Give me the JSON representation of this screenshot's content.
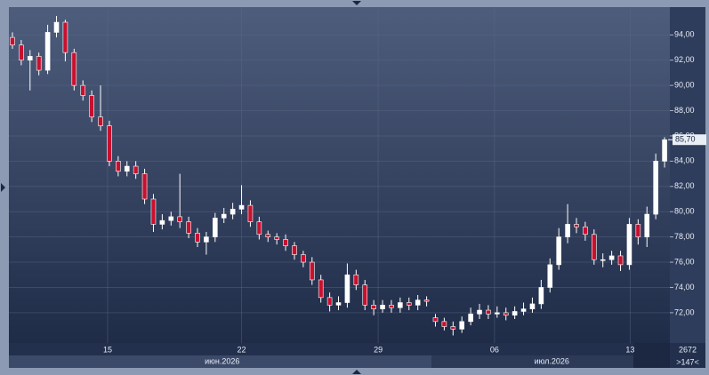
{
  "chart_data": {
    "type": "candlestick",
    "open": [
      93.8,
      93.2,
      92.0,
      92.3,
      91.2,
      94.2,
      95.0,
      92.6,
      90.0,
      89.2,
      87.5,
      86.8,
      84.0,
      83.2,
      83.6,
      83.0,
      81.0,
      79.0,
      79.3,
      79.6,
      79.2,
      78.3,
      77.6,
      78.0,
      79.5,
      79.8,
      80.2,
      80.5,
      79.2,
      78.2,
      78.0,
      77.8,
      77.3,
      76.6,
      76.0,
      74.6,
      73.2,
      72.6,
      72.8,
      75.0,
      74.2,
      72.6,
      72.3,
      72.6,
      72.4,
      72.8,
      72.6,
      73.0,
      71.6,
      71.3,
      70.9,
      70.7,
      71.3,
      71.9,
      72.2,
      71.9,
      72.0,
      71.8,
      72.1,
      72.3,
      72.7,
      74.0,
      75.8,
      78.0,
      79.0,
      78.8,
      78.2,
      76.2,
      76.2,
      76.5,
      75.8,
      79.0,
      78.0,
      79.8,
      84.0
    ],
    "high": [
      94.2,
      93.6,
      92.8,
      92.6,
      94.8,
      95.5,
      95.2,
      92.9,
      90.4,
      89.6,
      90.0,
      87.2,
      84.4,
      84.0,
      84.0,
      83.4,
      81.4,
      79.8,
      80.0,
      83.0,
      79.6,
      78.7,
      78.4,
      79.9,
      80.3,
      80.7,
      82.1,
      80.9,
      79.6,
      78.5,
      78.3,
      78.2,
      77.6,
      76.9,
      76.4,
      75.0,
      73.6,
      73.3,
      75.9,
      75.4,
      74.6,
      73.0,
      73.0,
      73.0,
      73.2,
      73.2,
      73.4,
      73.3,
      71.9,
      71.6,
      71.3,
      71.7,
      72.4,
      72.7,
      72.6,
      72.5,
      72.4,
      72.5,
      72.8,
      73.2,
      74.6,
      76.3,
      78.7,
      80.6,
      79.5,
      79.2,
      78.6,
      76.7,
      76.9,
      76.9,
      79.5,
      79.4,
      80.4,
      84.6,
      85.9
    ],
    "low": [
      92.9,
      91.6,
      89.6,
      90.8,
      90.9,
      93.8,
      91.9,
      89.6,
      88.8,
      87.1,
      86.4,
      83.6,
      82.8,
      82.8,
      82.6,
      80.6,
      78.4,
      78.6,
      78.9,
      78.7,
      77.9,
      77.2,
      76.6,
      77.6,
      79.1,
      79.4,
      79.8,
      78.8,
      77.8,
      77.6,
      77.4,
      76.9,
      76.2,
      75.6,
      74.2,
      72.8,
      72.1,
      72.2,
      72.4,
      73.8,
      72.2,
      71.8,
      72.0,
      72.0,
      72.0,
      72.2,
      72.2,
      72.5,
      70.9,
      70.6,
      70.2,
      70.4,
      71.0,
      71.5,
      71.5,
      71.6,
      71.4,
      71.5,
      71.8,
      72.0,
      72.3,
      73.6,
      75.4,
      77.5,
      78.3,
      77.7,
      75.8,
      75.6,
      75.8,
      75.3,
      75.4,
      77.4,
      77.2,
      79.4,
      83.5
    ],
    "close": [
      93.2,
      92.0,
      92.3,
      91.2,
      94.2,
      95.0,
      92.6,
      90.0,
      89.2,
      87.5,
      86.8,
      84.0,
      83.2,
      83.6,
      83.0,
      81.0,
      79.0,
      79.3,
      79.6,
      79.2,
      78.3,
      77.6,
      78.0,
      79.5,
      79.8,
      80.2,
      80.5,
      79.2,
      78.2,
      78.0,
      77.8,
      77.3,
      76.6,
      76.0,
      74.6,
      73.2,
      72.6,
      72.8,
      75.0,
      74.2,
      72.6,
      72.3,
      72.6,
      72.4,
      72.8,
      72.6,
      73.0,
      72.9,
      71.3,
      70.9,
      70.7,
      71.3,
      71.9,
      72.2,
      71.9,
      72.0,
      71.8,
      72.1,
      72.3,
      72.7,
      74.0,
      75.8,
      78.0,
      79.0,
      78.8,
      78.2,
      76.2,
      76.2,
      76.5,
      75.8,
      79.0,
      78.0,
      79.8,
      84.0,
      85.7
    ],
    "up_color": "#ffffff",
    "down_color": "#c8102e",
    "xlim": [
      -0.4,
      74.6
    ],
    "xticks": [
      {
        "value": 10.8,
        "label": "15"
      },
      {
        "value": 26,
        "label": "22"
      },
      {
        "value": 41.5,
        "label": "29"
      },
      {
        "value": 54.7,
        "label": "06"
      },
      {
        "value": 70.1,
        "label": "13"
      }
    ],
    "months": [
      {
        "value": 23.8,
        "label": "июн.2026"
      },
      {
        "value": 61.2,
        "label": "июл.2026"
      }
    ],
    "ylim": [
      69.6,
      96.2
    ],
    "yticks": [
      {
        "value": 72,
        "label": "72,00"
      },
      {
        "value": 74,
        "label": "74,00"
      },
      {
        "value": 76,
        "label": "76,00"
      },
      {
        "value": 78,
        "label": "78,00"
      },
      {
        "value": 80,
        "label": "80,00"
      },
      {
        "value": 82,
        "label": "82,00"
      },
      {
        "value": 84,
        "label": "84,00"
      },
      {
        "value": 86,
        "label": "86,00"
      },
      {
        "value": 88,
        "label": "88,00"
      },
      {
        "value": 90,
        "label": "90,00"
      },
      {
        "value": 92,
        "label": "92,00"
      },
      {
        "value": 94,
        "label": "94,00"
      }
    ],
    "last_price": {
      "value": 85.7,
      "label": "85,70"
    },
    "corner_top": "2672",
    "corner_bottom": ">147<",
    "grid": true
  }
}
